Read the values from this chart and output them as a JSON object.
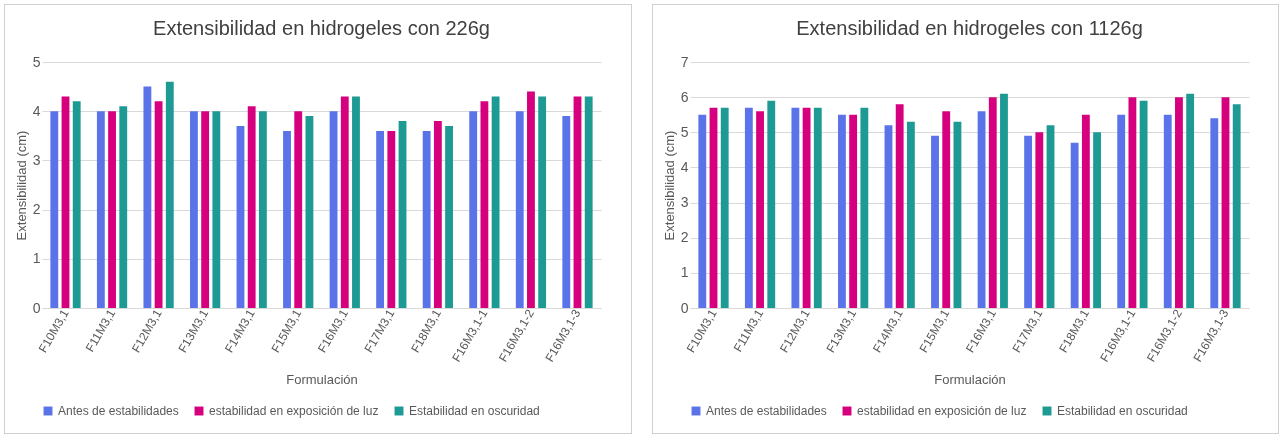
{
  "chart_data": [
    {
      "type": "bar",
      "title": "Extensibilidad en hidrogeles con 226g",
      "xlabel": "Formulación",
      "ylabel": "Extensibilidad (cm)",
      "categories": [
        "F10M3,1",
        "F11M3,1",
        "F12M3,1",
        "F13M3,1",
        "F14M3,1",
        "F15M3,1",
        "F16M3,1",
        "F17M3,1",
        "F18M3,1",
        "F16M3,1-1",
        "F16M3,1-2",
        "F16M3,1-3"
      ],
      "series": [
        {
          "name": "Antes de estabilidades",
          "color": "#5b73e8",
          "values": [
            4.0,
            4.0,
            4.5,
            4.0,
            3.7,
            3.6,
            4.0,
            3.6,
            3.6,
            4.0,
            4.0,
            3.9
          ]
        },
        {
          "name": "estabilidad en exposición de luz",
          "color": "#d6007f",
          "values": [
            4.3,
            4.0,
            4.2,
            4.0,
            4.1,
            4.0,
            4.3,
            3.6,
            3.8,
            4.2,
            4.4,
            4.3
          ]
        },
        {
          "name": "Estabilidad en oscuridad",
          "color": "#1e9a94",
          "values": [
            4.2,
            4.1,
            4.6,
            4.0,
            4.0,
            3.9,
            4.3,
            3.8,
            3.7,
            4.3,
            4.3,
            4.3
          ]
        }
      ],
      "ylim": [
        0,
        5
      ],
      "yticks": [
        0,
        1,
        2,
        3,
        4,
        5
      ],
      "grid": "y",
      "legend": "bottom"
    },
    {
      "type": "bar",
      "title": "Extensibilidad en hidrogeles con 1126g",
      "xlabel": "Formulación",
      "ylabel": "Extensibilidad (cm)",
      "categories": [
        "F10M3,1",
        "F11M3,1",
        "F12M3,1",
        "F13M3,1",
        "F14M3,1",
        "F15M3,1",
        "F16M3,1",
        "F17M3,1",
        "F18M3,1",
        "F16M3,1-1",
        "F16M3,1-2",
        "F16M3,1-3"
      ],
      "series": [
        {
          "name": "Antes de estabilidades",
          "color": "#5b73e8",
          "values": [
            5.5,
            5.7,
            5.7,
            5.5,
            5.2,
            4.9,
            5.6,
            4.9,
            4.7,
            5.5,
            5.5,
            5.4
          ]
        },
        {
          "name": "estabilidad en exposición de luz",
          "color": "#d6007f",
          "values": [
            5.7,
            5.6,
            5.7,
            5.5,
            5.8,
            5.6,
            6.0,
            5.0,
            5.5,
            6.0,
            6.0,
            6.0
          ]
        },
        {
          "name": "Estabilidad en oscuridad",
          "color": "#1e9a94",
          "values": [
            5.7,
            5.9,
            5.7,
            5.7,
            5.3,
            5.3,
            6.1,
            5.2,
            5.0,
            5.9,
            6.1,
            5.8
          ]
        }
      ],
      "ylim": [
        0,
        7
      ],
      "yticks": [
        0,
        1,
        2,
        3,
        4,
        5,
        6,
        7
      ],
      "grid": "y",
      "legend": "bottom"
    }
  ]
}
